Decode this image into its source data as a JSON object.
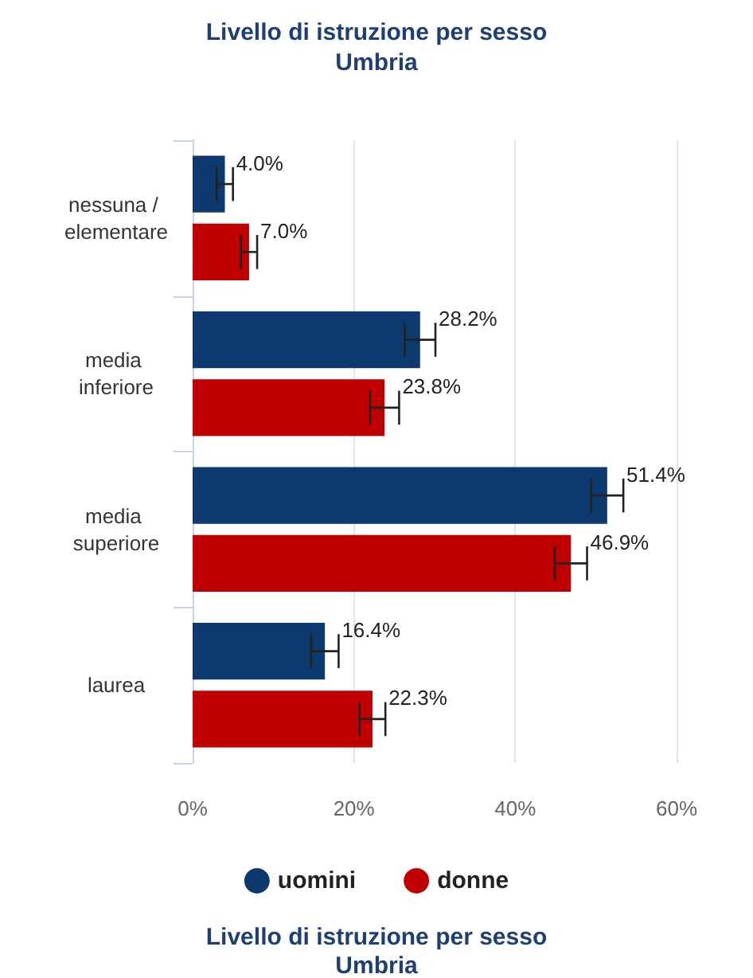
{
  "chart_data": {
    "type": "bar",
    "orientation": "horizontal",
    "title": "Livello di istruzione per sesso",
    "subtitle": "Umbria",
    "categories": [
      "nessuna / elementare",
      "media inferiore",
      "media superiore",
      "laurea"
    ],
    "series": [
      {
        "name": "uomini",
        "color": "#0d3a6e",
        "values": [
          4.0,
          28.2,
          51.4,
          16.4
        ],
        "errors": [
          1,
          1.9,
          2,
          1.7
        ],
        "value_labels": [
          "4.0%",
          "28.2%",
          "51.4%",
          "16.4%"
        ]
      },
      {
        "name": "donne",
        "color": "#c00000",
        "values": [
          7.0,
          23.8,
          46.9,
          22.3
        ],
        "errors": [
          1,
          1.8,
          2,
          1.6
        ],
        "value_labels": [
          "7.0%",
          "23.8%",
          "46.9%",
          "22.3%"
        ]
      }
    ],
    "xlim": [
      0,
      60
    ],
    "xticks": [
      {
        "value": 0,
        "label": "0%"
      },
      {
        "value": 20,
        "label": "20%"
      },
      {
        "value": 40,
        "label": "40%"
      },
      {
        "value": 60,
        "label": "60%"
      }
    ],
    "grid": "x",
    "legend": "bottom",
    "annotations": [
      "Livello di istruzione per sesso",
      "Umbria"
    ]
  }
}
